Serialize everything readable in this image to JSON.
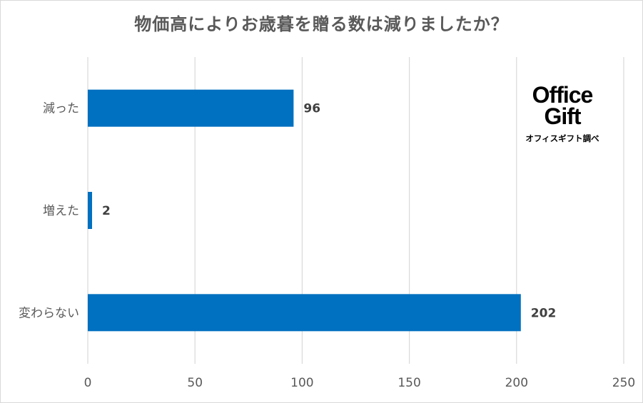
{
  "chart_data": {
    "type": "bar",
    "orientation": "horizontal",
    "title": "物価高によりお歳暮を贈る数は減りましたか？",
    "categories": [
      "減った",
      "増えた",
      "変わらない"
    ],
    "values": [
      96,
      2,
      202
    ],
    "xlim": [
      0,
      250
    ],
    "x_ticks": [
      0,
      50,
      100,
      150,
      200,
      250
    ],
    "grid": "vertical",
    "bar_color": "#0070C0",
    "legend": "none"
  },
  "logo": {
    "line1": "Office",
    "line2": "Gift",
    "sub": "オフィスギフト調べ"
  },
  "colors": {
    "grid": "#d9d9d9",
    "label": "#595959",
    "value_label": "#404040"
  }
}
